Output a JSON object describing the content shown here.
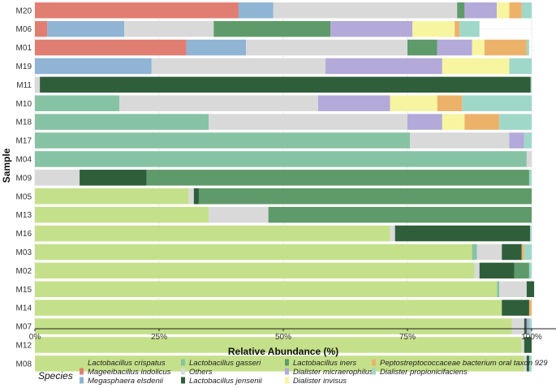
{
  "chart_data": {
    "type": "bar",
    "orientation": "horizontal",
    "stacked": true,
    "xlabel": "Relative Abundance (%)",
    "ylabel": "Sample",
    "xlim": [
      0,
      100
    ],
    "x_ticks": [
      {
        "value": 0,
        "label": "0%"
      },
      {
        "value": 25,
        "label": "25%"
      },
      {
        "value": 50,
        "label": "50%"
      },
      {
        "value": 75,
        "label": "75%"
      },
      {
        "value": 100,
        "label": "100%"
      }
    ],
    "categories": [
      "M20",
      "M06",
      "M01",
      "M19",
      "M11",
      "M10",
      "M18",
      "M17",
      "M04",
      "M09",
      "M05",
      "M13",
      "M16",
      "M03",
      "M02",
      "M15",
      "M14",
      "M07",
      "M12",
      "M08"
    ],
    "legend_title": "Species",
    "legend_order": [
      "Lactobacillus crispatus",
      "Mageeibacillus indolicus",
      "Megasphaera elsdenii",
      "Lactobacillus gasseri",
      "Others",
      "Lactobacillus jensenii",
      "Lactobacillus iners",
      "Dialister micraerophilus",
      "Dialister invisus",
      "Peptostreptococcaceae bacterium oral taxon 929",
      "Dialister propionicifaciens"
    ],
    "series": [
      {
        "name": "Lactobacillus crispatus",
        "color": "#c5e08a",
        "values": [
          0,
          0,
          0,
          0,
          0,
          0,
          0,
          0,
          0,
          0,
          31,
          35,
          71.5,
          88,
          88.5,
          93,
          94,
          96,
          98,
          98.5
        ]
      },
      {
        "name": "Mageeibacillus indolicus",
        "color": "#e17e72",
        "values": [
          41,
          2.5,
          30.5,
          0,
          0,
          0,
          0,
          0,
          0,
          0,
          0,
          0,
          0,
          0,
          0,
          0,
          0,
          0,
          0,
          0
        ]
      },
      {
        "name": "Megasphaera elsdenii",
        "color": "#8fb4d4",
        "values": [
          7,
          15.5,
          12,
          23.5,
          0,
          0,
          0,
          0,
          0,
          0,
          0,
          0,
          0,
          0,
          0,
          0,
          0,
          0,
          0,
          0
        ]
      },
      {
        "name": "Lactobacillus gasseri",
        "color": "#86c3a4",
        "values": [
          0,
          0,
          0,
          0,
          0,
          17,
          35,
          75.5,
          99,
          0,
          0,
          0,
          0,
          1,
          0,
          0.5,
          0,
          0,
          0,
          0
        ]
      },
      {
        "name": "Others",
        "color": "#d9d9d9",
        "values": [
          37,
          18,
          32.5,
          35,
          1,
          40,
          40,
          20,
          1,
          9,
          1,
          12,
          1,
          5,
          1,
          5.5,
          0,
          2.5,
          0.5,
          0.5
        ]
      },
      {
        "name": "Lactobacillus jensenii",
        "color": "#2f5e3b",
        "values": [
          0,
          0,
          0,
          0,
          98.8,
          0,
          0,
          0,
          0,
          13.5,
          1,
          0,
          27.2,
          4,
          7,
          1.5,
          5.5,
          0.5,
          1.5,
          0.5
        ]
      },
      {
        "name": "Lactobacillus iners",
        "color": "#5f9a6a",
        "values": [
          1.5,
          23.5,
          6,
          0,
          0,
          0,
          0,
          0,
          0,
          77,
          67,
          53,
          0,
          0,
          3,
          0,
          0,
          0,
          0,
          0
        ]
      },
      {
        "name": "Dialister micraerophilus",
        "color": "#b3aad9",
        "values": [
          6.5,
          16.5,
          7,
          23.5,
          0,
          14.5,
          7,
          3,
          0,
          0,
          0,
          0,
          0,
          0,
          0,
          0,
          0,
          0.5,
          0,
          0
        ]
      },
      {
        "name": "Dialister invisus",
        "color": "#f7f5a0",
        "values": [
          2.5,
          8.5,
          2.5,
          13.5,
          0,
          9.5,
          4.5,
          0,
          0,
          0,
          0,
          0,
          0,
          0,
          0,
          0,
          0,
          0,
          0,
          0
        ]
      },
      {
        "name": "Peptostreptococcaceae bacterium oral taxon 929",
        "color": "#edb26a",
        "values": [
          2.5,
          1,
          8.5,
          0,
          0,
          5,
          7,
          0,
          0,
          0,
          0,
          0,
          0,
          0.5,
          0,
          0,
          0.5,
          0,
          0,
          0
        ]
      },
      {
        "name": "Dialister propionicifaciens",
        "color": "#9fd8c8",
        "values": [
          2,
          4,
          0.5,
          4.5,
          0.2,
          14,
          6.5,
          1.5,
          0,
          0.5,
          0,
          0,
          0.3,
          1.5,
          0.5,
          0,
          0,
          0.5,
          0,
          0.5
        ]
      }
    ]
  }
}
